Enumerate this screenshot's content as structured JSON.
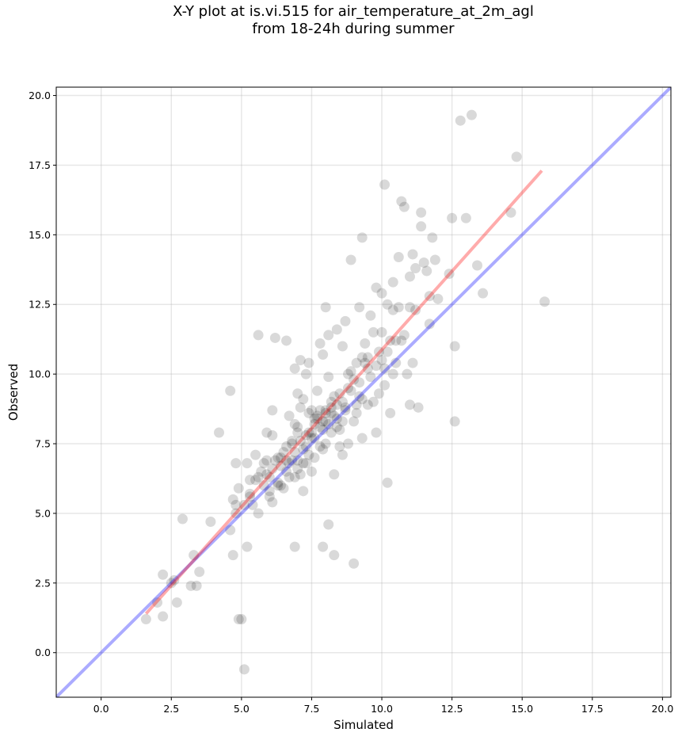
{
  "chart_data": {
    "type": "scatter",
    "title": "X-Y plot at is.vi.515 for air_temperature_at_2m_agl",
    "subtitle": "from 18-24h during summer",
    "xlabel": "Simulated",
    "ylabel": "Observed",
    "xlim": [
      -1.6,
      20.3
    ],
    "ylim": [
      -1.6,
      20.3
    ],
    "xticks": [
      0.0,
      2.5,
      5.0,
      7.5,
      10.0,
      12.5,
      15.0,
      17.5,
      20.0
    ],
    "yticks": [
      0.0,
      2.5,
      5.0,
      7.5,
      10.0,
      12.5,
      15.0,
      17.5,
      20.0
    ],
    "xtick_labels": [
      "0.0",
      "2.5",
      "5.0",
      "7.5",
      "10.0",
      "12.5",
      "15.0",
      "17.5",
      "20.0"
    ],
    "ytick_labels": [
      "0.0",
      "2.5",
      "5.0",
      "7.5",
      "10.0",
      "12.5",
      "15.0",
      "17.5",
      "20.0"
    ],
    "grid": true,
    "point_color": "#000000",
    "point_opacity": 0.15,
    "identity_line": {
      "color": "#0000ff",
      "opacity": 0.33,
      "from": [
        -1.6,
        -1.6
      ],
      "to": [
        20.3,
        20.3
      ]
    },
    "regression_line": {
      "color": "#ff0000",
      "opacity": 0.33,
      "from": [
        1.6,
        1.4
      ],
      "to": [
        15.7,
        17.3
      ]
    },
    "points": [
      [
        1.6,
        1.2
      ],
      [
        2.0,
        1.8
      ],
      [
        2.2,
        1.3
      ],
      [
        2.2,
        2.8
      ],
      [
        2.5,
        2.5
      ],
      [
        2.6,
        2.6
      ],
      [
        2.7,
        1.8
      ],
      [
        2.9,
        4.8
      ],
      [
        3.2,
        2.4
      ],
      [
        3.3,
        3.5
      ],
      [
        3.4,
        2.4
      ],
      [
        3.5,
        2.9
      ],
      [
        3.9,
        4.7
      ],
      [
        4.2,
        7.9
      ],
      [
        4.6,
        9.4
      ],
      [
        4.6,
        4.4
      ],
      [
        4.7,
        5.5
      ],
      [
        4.7,
        3.5
      ],
      [
        4.8,
        6.8
      ],
      [
        4.8,
        5.0
      ],
      [
        4.9,
        1.2
      ],
      [
        4.9,
        5.9
      ],
      [
        5.0,
        1.2
      ],
      [
        5.1,
        -0.6
      ],
      [
        5.1,
        5.3
      ],
      [
        5.2,
        3.8
      ],
      [
        5.2,
        6.8
      ],
      [
        5.3,
        5.7
      ],
      [
        5.3,
        6.2
      ],
      [
        5.4,
        5.3
      ],
      [
        5.5,
        7.1
      ],
      [
        5.5,
        6.2
      ],
      [
        5.6,
        11.4
      ],
      [
        5.6,
        5.0
      ],
      [
        5.7,
        6.5
      ],
      [
        5.8,
        6.0
      ],
      [
        5.9,
        6.9
      ],
      [
        5.9,
        7.9
      ],
      [
        6.0,
        5.6
      ],
      [
        6.0,
        6.3
      ],
      [
        6.1,
        5.4
      ],
      [
        6.1,
        7.8
      ],
      [
        6.1,
        8.7
      ],
      [
        6.2,
        11.3
      ],
      [
        6.3,
        6.0
      ],
      [
        6.4,
        7.0
      ],
      [
        6.5,
        5.9
      ],
      [
        6.6,
        6.5
      ],
      [
        6.6,
        7.4
      ],
      [
        6.6,
        11.2
      ],
      [
        6.7,
        8.5
      ],
      [
        6.7,
        6.8
      ],
      [
        6.8,
        7.5
      ],
      [
        6.9,
        6.3
      ],
      [
        6.9,
        3.8
      ],
      [
        6.9,
        10.2
      ],
      [
        7.0,
        7.9
      ],
      [
        7.0,
        6.6
      ],
      [
        7.0,
        9.3
      ],
      [
        7.1,
        8.8
      ],
      [
        7.1,
        10.5
      ],
      [
        7.2,
        5.8
      ],
      [
        7.2,
        7.3
      ],
      [
        7.2,
        9.1
      ],
      [
        7.3,
        6.8
      ],
      [
        7.3,
        10.0
      ],
      [
        7.4,
        7.9
      ],
      [
        7.4,
        8.6
      ],
      [
        7.4,
        10.4
      ],
      [
        7.5,
        6.5
      ],
      [
        7.5,
        7.7
      ],
      [
        7.6,
        8.2
      ],
      [
        7.6,
        7.0
      ],
      [
        7.7,
        9.4
      ],
      [
        7.7,
        8.5
      ],
      [
        7.8,
        7.4
      ],
      [
        7.8,
        11.1
      ],
      [
        7.9,
        3.8
      ],
      [
        7.9,
        8.0
      ],
      [
        7.9,
        10.7
      ],
      [
        8.0,
        12.4
      ],
      [
        8.0,
        7.5
      ],
      [
        8.0,
        8.6
      ],
      [
        8.1,
        11.4
      ],
      [
        8.1,
        9.9
      ],
      [
        8.1,
        4.6
      ],
      [
        8.2,
        7.9
      ],
      [
        8.2,
        8.8
      ],
      [
        8.3,
        6.4
      ],
      [
        8.3,
        3.5
      ],
      [
        8.3,
        9.2
      ],
      [
        8.4,
        8.4
      ],
      [
        8.4,
        11.6
      ],
      [
        8.5,
        7.4
      ],
      [
        8.5,
        9.3
      ],
      [
        8.6,
        7.1
      ],
      [
        8.6,
        11.0
      ],
      [
        8.7,
        8.7
      ],
      [
        8.7,
        11.9
      ],
      [
        8.8,
        7.5
      ],
      [
        8.8,
        9.5
      ],
      [
        8.9,
        14.1
      ],
      [
        8.9,
        10.1
      ],
      [
        9.0,
        8.3
      ],
      [
        9.0,
        3.2
      ],
      [
        9.1,
        10.4
      ],
      [
        9.1,
        8.6
      ],
      [
        9.2,
        12.4
      ],
      [
        9.2,
        9.2
      ],
      [
        9.3,
        7.7
      ],
      [
        9.3,
        14.9
      ],
      [
        9.3,
        10.6
      ],
      [
        9.4,
        11.1
      ],
      [
        9.5,
        8.9
      ],
      [
        9.5,
        10.2
      ],
      [
        9.6,
        12.1
      ],
      [
        9.7,
        9.0
      ],
      [
        9.7,
        11.5
      ],
      [
        9.8,
        13.1
      ],
      [
        9.8,
        7.9
      ],
      [
        9.9,
        9.3
      ],
      [
        9.9,
        10.8
      ],
      [
        10.0,
        12.9
      ],
      [
        10.0,
        11.5
      ],
      [
        10.1,
        16.8
      ],
      [
        10.1,
        10.2
      ],
      [
        10.2,
        12.5
      ],
      [
        10.2,
        6.1
      ],
      [
        10.3,
        8.6
      ],
      [
        10.3,
        11.2
      ],
      [
        10.4,
        13.3
      ],
      [
        10.4,
        12.3
      ],
      [
        10.5,
        10.4
      ],
      [
        10.6,
        14.2
      ],
      [
        10.6,
        12.4
      ],
      [
        10.7,
        16.2
      ],
      [
        10.7,
        11.2
      ],
      [
        10.8,
        16.0
      ],
      [
        10.9,
        10.0
      ],
      [
        11.0,
        13.5
      ],
      [
        11.0,
        8.9
      ],
      [
        11.1,
        10.4
      ],
      [
        11.1,
        14.3
      ],
      [
        11.2,
        12.3
      ],
      [
        11.2,
        13.8
      ],
      [
        11.3,
        8.8
      ],
      [
        11.4,
        15.8
      ],
      [
        11.4,
        15.3
      ],
      [
        11.5,
        14.0
      ],
      [
        11.6,
        13.7
      ],
      [
        11.7,
        11.8
      ],
      [
        11.7,
        12.8
      ],
      [
        11.8,
        14.9
      ],
      [
        11.9,
        14.1
      ],
      [
        12.0,
        12.7
      ],
      [
        12.4,
        13.6
      ],
      [
        12.5,
        15.6
      ],
      [
        12.6,
        11.0
      ],
      [
        12.6,
        8.3
      ],
      [
        12.8,
        19.1
      ],
      [
        13.0,
        15.6
      ],
      [
        13.2,
        19.3
      ],
      [
        13.4,
        13.9
      ],
      [
        13.6,
        12.9
      ],
      [
        14.6,
        15.8
      ],
      [
        14.8,
        17.8
      ],
      [
        15.8,
        12.6
      ],
      [
        6.5,
        7.2
      ],
      [
        6.8,
        6.9
      ],
      [
        7.0,
        6.9
      ],
      [
        7.3,
        7.4
      ],
      [
        7.6,
        7.7
      ],
      [
        7.8,
        8.1
      ],
      [
        7.9,
        8.3
      ],
      [
        8.0,
        8.7
      ],
      [
        8.2,
        8.6
      ],
      [
        8.4,
        8.9
      ],
      [
        6.4,
        6.7
      ],
      [
        6.6,
        6.9
      ],
      [
        7.5,
        7.9
      ],
      [
        8.6,
        9.0
      ],
      [
        7.1,
        7.6
      ],
      [
        6.3,
        6.1
      ],
      [
        6.9,
        7.2
      ],
      [
        7.7,
        8.4
      ],
      [
        8.9,
        9.4
      ],
      [
        8.1,
        8.2
      ],
      [
        5.9,
        6.4
      ],
      [
        6.2,
        6.9
      ],
      [
        7.4,
        7.1
      ],
      [
        8.0,
        8.3
      ],
      [
        8.7,
        8.8
      ],
      [
        9.6,
        9.9
      ],
      [
        10.0,
        10.5
      ],
      [
        9.4,
        10.4
      ],
      [
        10.5,
        11.2
      ],
      [
        8.5,
        8.0
      ],
      [
        7.2,
        6.8
      ],
      [
        6.7,
        6.3
      ],
      [
        6.0,
        5.8
      ],
      [
        5.6,
        6.3
      ],
      [
        5.8,
        6.8
      ],
      [
        6.9,
        8.2
      ],
      [
        7.8,
        8.7
      ],
      [
        8.3,
        8.5
      ],
      [
        9.2,
        9.7
      ],
      [
        9.8,
        10.3
      ],
      [
        10.2,
        10.8
      ],
      [
        10.8,
        11.4
      ],
      [
        7.0,
        8.1
      ],
      [
        7.5,
        8.7
      ],
      [
        8.2,
        9.0
      ],
      [
        9.0,
        9.8
      ],
      [
        6.3,
        7.0
      ],
      [
        5.3,
        5.6
      ],
      [
        4.8,
        5.3
      ],
      [
        7.3,
        7.8
      ],
      [
        8.8,
        10.0
      ],
      [
        9.5,
        10.6
      ],
      [
        11.0,
        12.4
      ],
      [
        6.1,
        6.6
      ],
      [
        6.8,
        7.6
      ],
      [
        7.6,
        8.4
      ],
      [
        8.4,
        8.1
      ],
      [
        9.1,
        8.9
      ],
      [
        10.1,
        9.6
      ],
      [
        7.9,
        7.3
      ],
      [
        7.1,
        6.4
      ],
      [
        6.4,
        6.0
      ],
      [
        8.6,
        8.3
      ],
      [
        9.3,
        9.1
      ],
      [
        10.4,
        10.0
      ]
    ]
  }
}
